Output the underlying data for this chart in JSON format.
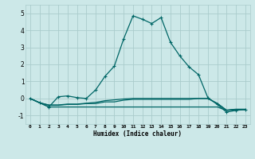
{
  "xlabel": "Humidex (Indice chaleur)",
  "background_color": "#cce8e8",
  "grid_color": "#aacccc",
  "line_color": "#006666",
  "xlim": [
    -0.5,
    23.5
  ],
  "ylim": [
    -1.5,
    5.5
  ],
  "x": [
    0,
    1,
    2,
    3,
    4,
    5,
    6,
    7,
    8,
    9,
    10,
    11,
    12,
    13,
    14,
    15,
    16,
    17,
    18,
    19,
    20,
    21,
    22,
    23
  ],
  "y_main": [
    0.0,
    -0.25,
    -0.5,
    0.1,
    0.15,
    0.05,
    0.0,
    0.5,
    1.3,
    1.9,
    3.5,
    4.85,
    4.65,
    4.4,
    4.75,
    3.3,
    2.5,
    1.85,
    1.4,
    0.05,
    -0.35,
    -0.8,
    -0.7,
    -0.65
  ],
  "y_flat1": [
    0.0,
    -0.25,
    -0.5,
    -0.5,
    -0.5,
    -0.5,
    -0.5,
    -0.5,
    -0.5,
    -0.5,
    -0.5,
    -0.5,
    -0.5,
    -0.5,
    -0.5,
    -0.5,
    -0.5,
    -0.5,
    -0.5,
    -0.5,
    -0.5,
    -0.7,
    -0.65,
    -0.65
  ],
  "y_flat2": [
    0.0,
    -0.25,
    -0.4,
    -0.4,
    -0.35,
    -0.35,
    -0.3,
    -0.3,
    -0.2,
    -0.2,
    -0.1,
    -0.05,
    -0.05,
    -0.05,
    -0.05,
    -0.05,
    -0.05,
    -0.05,
    0.0,
    0.0,
    -0.3,
    -0.7,
    -0.65,
    -0.65
  ],
  "y_flat3": [
    0.0,
    -0.25,
    -0.38,
    -0.38,
    -0.33,
    -0.33,
    -0.28,
    -0.23,
    -0.13,
    -0.08,
    -0.03,
    0.0,
    0.0,
    0.0,
    0.0,
    0.0,
    0.0,
    0.0,
    0.0,
    0.0,
    -0.28,
    -0.68,
    -0.63,
    -0.63
  ],
  "xtick_labels": [
    "0",
    "1",
    "2",
    "3",
    "4",
    "5",
    "6",
    "7",
    "8",
    "9",
    "10",
    "11",
    "12",
    "13",
    "14",
    "15",
    "16",
    "17",
    "18",
    "19",
    "20",
    "21",
    "22",
    "23"
  ],
  "ytick_values": [
    -1,
    0,
    1,
    2,
    3,
    4,
    5
  ]
}
